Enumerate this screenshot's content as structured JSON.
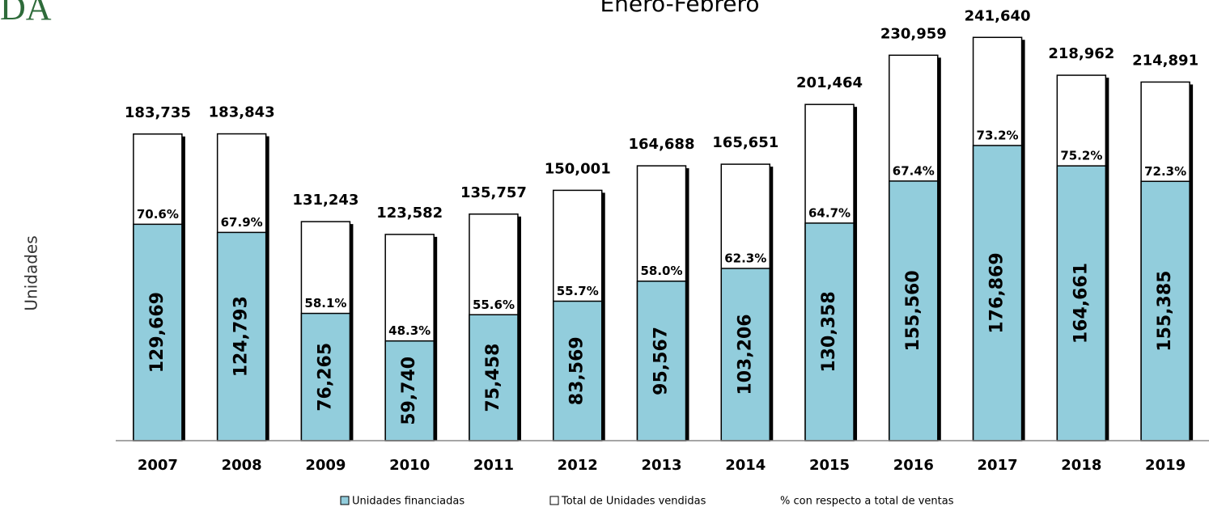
{
  "chart_data": {
    "type": "overlap_bar",
    "logo": "DA",
    "title": "Enero-Febrero",
    "y_label": "Unidades",
    "categories": [
      "2007",
      "2008",
      "2009",
      "2010",
      "2011",
      "2012",
      "2013",
      "2014",
      "2015",
      "2016",
      "2017",
      "2018",
      "2019"
    ],
    "ylim": [
      0,
      250000
    ],
    "series": [
      {
        "name": "Total de Unidades vendidas",
        "color": "#ffffff",
        "values": [
          183735,
          183843,
          131243,
          123582,
          135757,
          150001,
          164688,
          165651,
          201464,
          230959,
          241640,
          218962,
          214891
        ],
        "value_labels": [
          "183,735",
          "183,843",
          "131,243",
          "123,582",
          "135,757",
          "150,001",
          "164,688",
          "165,651",
          "201,464",
          "230,959",
          "241,640",
          "218,962",
          "214,891"
        ]
      },
      {
        "name": "Unidades financiadas",
        "color": "#92cddc",
        "values": [
          129669,
          124793,
          76265,
          59740,
          75458,
          83569,
          95567,
          103206,
          130358,
          155560,
          176869,
          164661,
          155385
        ],
        "value_labels": [
          "129,669",
          "124,793",
          "76,265",
          "59,740",
          "75,458",
          "83,569",
          "95,567",
          "103,206",
          "130,358",
          "155,560",
          "176,869",
          "164,661",
          "155,385"
        ]
      },
      {
        "name": "% con respecto a total de ventas",
        "values": [
          70.6,
          67.9,
          58.1,
          48.3,
          55.6,
          55.7,
          58.0,
          62.3,
          64.7,
          67.4,
          73.2,
          75.2,
          72.3
        ],
        "value_labels": [
          "70.6%",
          "67.9%",
          "58.1%",
          "48.3%",
          "55.6%",
          "55.7%",
          "58.0%",
          "62.3%",
          "64.7%",
          "67.4%",
          "73.2%",
          "75.2%",
          "72.3%"
        ]
      }
    ]
  }
}
